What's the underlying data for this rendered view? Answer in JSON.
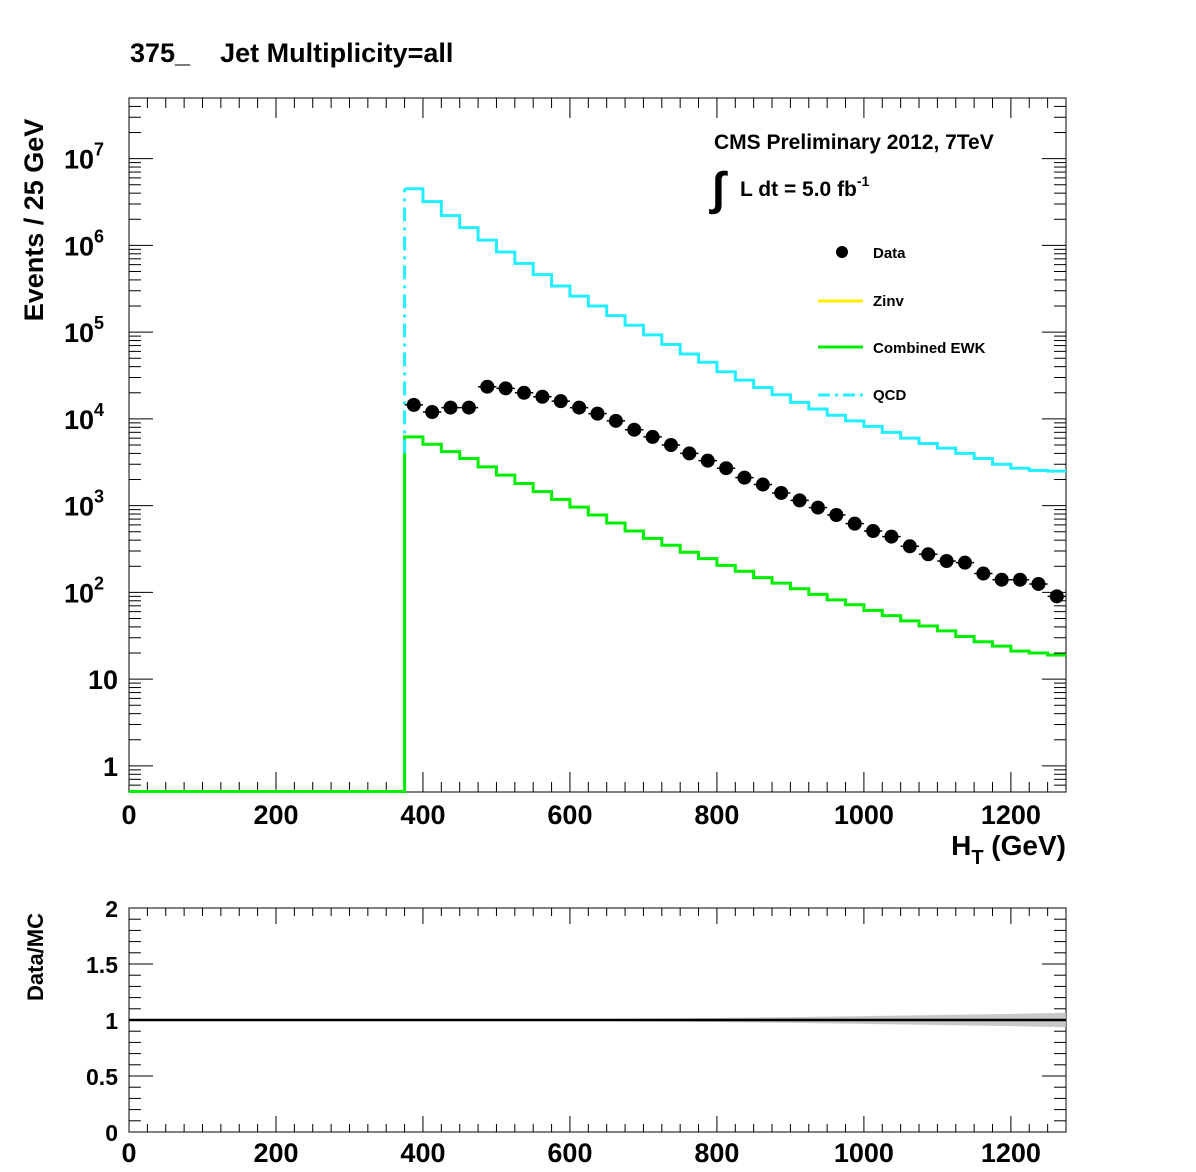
{
  "colors": {
    "data": "#000000",
    "zinv": "#ffee00",
    "ewk": "#00ee00",
    "qcd": "#22eeff",
    "ratio_band": "#bbbbbb",
    "ratio_line": "#000000"
  },
  "chart_data": [
    {
      "type": "line",
      "title": "375_    Jet Multiplicity=all",
      "xlabel_main": "H",
      "xlabel_sub": "T",
      "xlabel_unit": " (GeV)",
      "ylabel": "Events / 25 GeV",
      "xlim": [
        0,
        1275
      ],
      "ylim": [
        0.5,
        50000000
      ],
      "yscale": "log",
      "grid": false,
      "xticks": [
        0,
        200,
        400,
        600,
        800,
        1000,
        1200
      ],
      "xtick_labels": [
        "0",
        "200",
        "400",
        "600",
        "800",
        "1000",
        "1200"
      ],
      "yticks": [
        1,
        10,
        100,
        1000,
        10000,
        100000,
        1000000,
        10000000
      ],
      "ytick_labels": [
        {
          "base": "1",
          "exp": ""
        },
        {
          "base": "10",
          "exp": ""
        },
        {
          "base": "10",
          "exp": "2"
        },
        {
          "base": "10",
          "exp": "3"
        },
        {
          "base": "10",
          "exp": "4"
        },
        {
          "base": "10",
          "exp": "5"
        },
        {
          "base": "10",
          "exp": "6"
        },
        {
          "base": "10",
          "exp": "7"
        }
      ],
      "annotation_line1": "CMS Preliminary 2012, 7TeV",
      "annotation_lumi": "L dt = 5.0 fb",
      "annotation_lumi_exp": "-1",
      "legend_position": "top-right",
      "legend": [
        {
          "label": "Data",
          "style": "marker"
        },
        {
          "label": "Zinv",
          "style": "line"
        },
        {
          "label": "Combined EWK",
          "style": "line"
        },
        {
          "label": "QCD",
          "style": "dashdot"
        }
      ],
      "bin_width": 25,
      "bin_edges_start": 375,
      "series": [
        {
          "name": "QCD",
          "values": [
            4500000,
            3200000,
            2200000,
            1600000,
            1150000,
            840000,
            620000,
            460000,
            340000,
            260000,
            200000,
            155000,
            120000,
            93000,
            72000,
            56000,
            45000,
            35000,
            28000,
            23000,
            19000,
            15500,
            13000,
            11000,
            9500,
            8200,
            7000,
            6000,
            5200,
            4600,
            4000,
            3500,
            3000,
            2700,
            2550,
            2500
          ]
        },
        {
          "name": "Combined EWK",
          "values": [
            6200,
            5100,
            4200,
            3500,
            2800,
            2250,
            1800,
            1450,
            1180,
            960,
            780,
            630,
            510,
            420,
            350,
            290,
            245,
            205,
            175,
            148,
            128,
            110,
            95,
            82,
            72,
            62,
            54,
            47,
            41,
            36,
            31,
            27,
            24,
            21,
            20,
            19
          ]
        },
        {
          "name": "Data",
          "x": [
            387.5,
            412.5,
            437.5,
            462.5,
            487.5,
            512.5,
            537.5,
            562.5,
            587.5,
            612.5,
            637.5,
            662.5,
            687.5,
            712.5,
            737.5,
            762.5,
            787.5,
            812.5,
            837.5,
            862.5,
            887.5,
            912.5,
            937.5,
            962.5,
            987.5,
            1012.5,
            1037.5,
            1062.5,
            1087.5,
            1112.5,
            1137.5,
            1162.5,
            1187.5,
            1212.5,
            1237.5,
            1262.5
          ],
          "values": [
            14500,
            12000,
            13500,
            13500,
            23500,
            22500,
            20000,
            18000,
            16000,
            13500,
            11500,
            9500,
            7500,
            6200,
            5000,
            4000,
            3300,
            2700,
            2100,
            1750,
            1400,
            1150,
            950,
            780,
            620,
            510,
            440,
            340,
            275,
            230,
            220,
            165,
            140,
            140,
            125,
            90
          ]
        }
      ],
      "zinv_values": []
    },
    {
      "type": "line",
      "ylabel": "Data/MC",
      "xlim": [
        0,
        1275
      ],
      "ylim": [
        0,
        2
      ],
      "xticks": [
        0,
        200,
        400,
        600,
        800,
        1000,
        1200
      ],
      "xtick_labels": [
        "0",
        "200",
        "400",
        "600",
        "800",
        "1000",
        "1200"
      ],
      "yticks": [
        0,
        0.5,
        1,
        1.5,
        2
      ],
      "ytick_labels": [
        "0",
        "0.5",
        "1",
        "1.5",
        "2"
      ],
      "grid": false,
      "series": [
        {
          "name": "ratio",
          "x": [
            0,
            1275
          ],
          "values": [
            1,
            1
          ]
        }
      ],
      "band_x": [
        375,
        500,
        600,
        700,
        800,
        900,
        1000,
        1100,
        1200,
        1275
      ],
      "band_halfwidth": [
        0.005,
        0.006,
        0.008,
        0.012,
        0.018,
        0.026,
        0.035,
        0.045,
        0.055,
        0.065
      ]
    }
  ]
}
